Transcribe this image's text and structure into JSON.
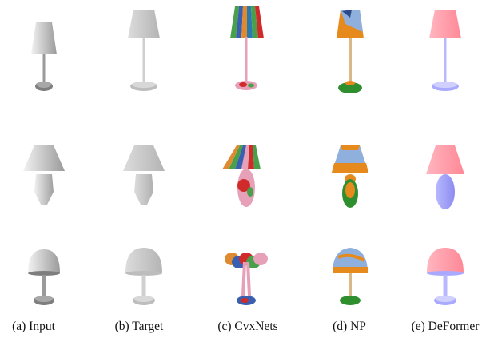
{
  "columns": [
    {
      "label": "(a) Input",
      "style": "input"
    },
    {
      "label": "(b) Target",
      "style": "target"
    },
    {
      "label": "(c) CvxNets",
      "style": "cvx"
    },
    {
      "label": "(d) NP",
      "style": "np"
    },
    {
      "label": "(e) DeFormer",
      "style": "deformer"
    }
  ],
  "rows": [
    {
      "shape": "tall-lamp"
    },
    {
      "shape": "vase-lamp"
    },
    {
      "shape": "dome-lamp"
    }
  ],
  "colors": {
    "gray_light": "#e2e2e2",
    "gray_mid": "#bdbdbd",
    "gray_dark": "#8c8c8c",
    "cvx_blue": "#3a5fb0",
    "cvx_green": "#4aa04a",
    "cvx_orange": "#e08a30",
    "cvx_pink": "#e6a0b8",
    "cvx_red": "#d02a2a",
    "np_blue": "#8fb0dc",
    "np_orange": "#e68a1e",
    "np_green": "#2f8f2f",
    "np_tan": "#d9b98a",
    "def_pink": "#ff9aa8",
    "def_blue": "#a9a9ff"
  }
}
